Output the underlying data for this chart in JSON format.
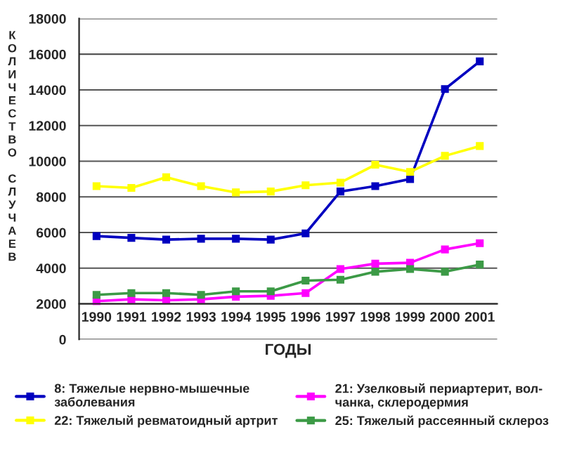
{
  "chart_data": {
    "type": "line",
    "xlabel": "ГОДЫ",
    "ylabel": "КОЛИЧЕСТВО СЛУЧАЕВ",
    "categories": [
      "1990",
      "1991",
      "1992",
      "1993",
      "1994",
      "1995",
      "1996",
      "1997",
      "1998",
      "1999",
      "2000",
      "2001"
    ],
    "series": [
      {
        "name": "8: Тяжелые нервно-мышечные\nзаболевания",
        "color": "#0000c0",
        "values": [
          5800,
          5700,
          5600,
          5650,
          5650,
          5600,
          5950,
          8300,
          8600,
          9000,
          14050,
          15600
        ]
      },
      {
        "name": "22: Тяжелый ревматоидный артрит",
        "color": "#ffff00",
        "values": [
          8600,
          8500,
          9100,
          8600,
          8250,
          8300,
          8650,
          8800,
          9800,
          9400,
          10300,
          10850
        ]
      },
      {
        "name": "21: Узелковый периартерит, вол-\nчанка, склеродермия",
        "color": "#ff00ff",
        "values": [
          2150,
          2250,
          2200,
          2250,
          2400,
          2450,
          2600,
          3950,
          4250,
          4300,
          5050,
          5400
        ]
      },
      {
        "name": "25: Тяжелый рассеянный склероз",
        "color": "#3c9a46",
        "values": [
          2500,
          2600,
          2600,
          2500,
          2700,
          2700,
          3300,
          3350,
          3800,
          3950,
          3800,
          4200
        ]
      }
    ],
    "ylim": [
      0,
      18000
    ],
    "yticks": [
      0,
      2000,
      4000,
      6000,
      8000,
      10000,
      12000,
      14000,
      16000,
      18000
    ],
    "grid": "y",
    "legend": "bottom",
    "marker": "square",
    "line_style": "solid"
  }
}
